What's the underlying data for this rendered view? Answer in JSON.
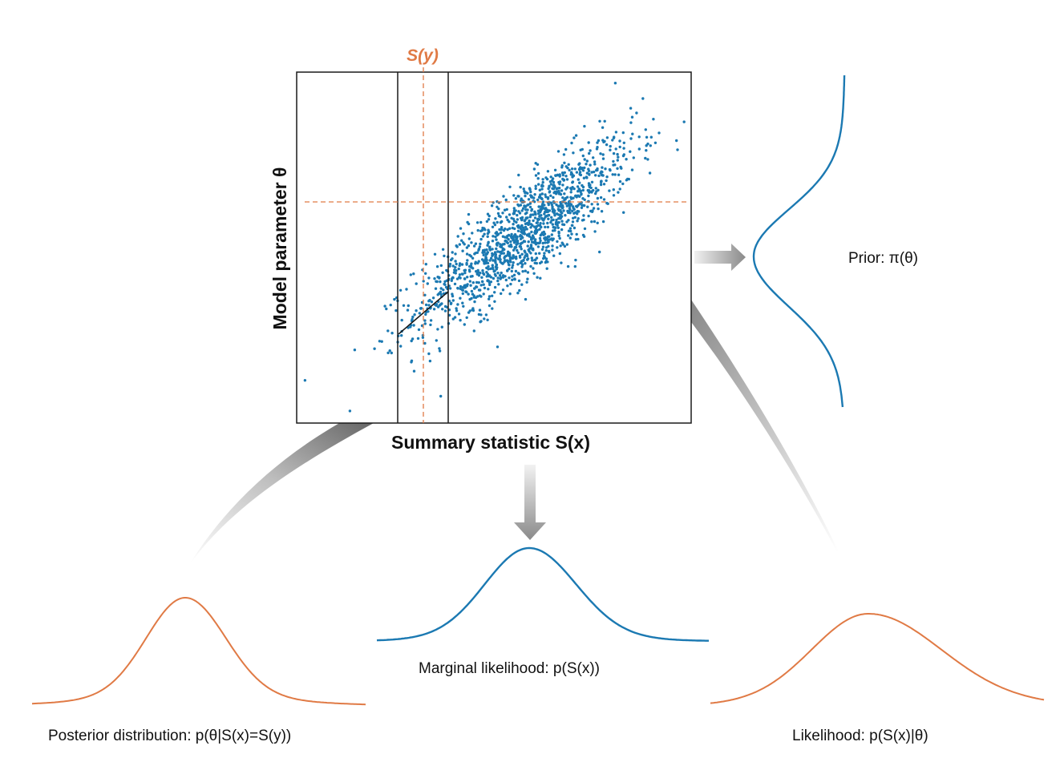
{
  "labels": {
    "sy_label": "S(y)",
    "y_axis": "Model parameter θ",
    "x_axis": "Summary statistic S(x)",
    "prior": "Prior:  π(θ)",
    "marginal": "Marginal likelihood:  p(S(x))",
    "posterior": "Posterior distribution:  p(θ|S(x)=S(y))",
    "likelihood": "Likelihood: p(S(x)|θ)"
  },
  "colors": {
    "blue": "#1b79b2",
    "orange": "#e07a45",
    "frame": "#1a1a1a",
    "arrow_gray": "#9a9a9a"
  },
  "scatter": {
    "point_count": 1400,
    "correlation": 0.85
  }
}
